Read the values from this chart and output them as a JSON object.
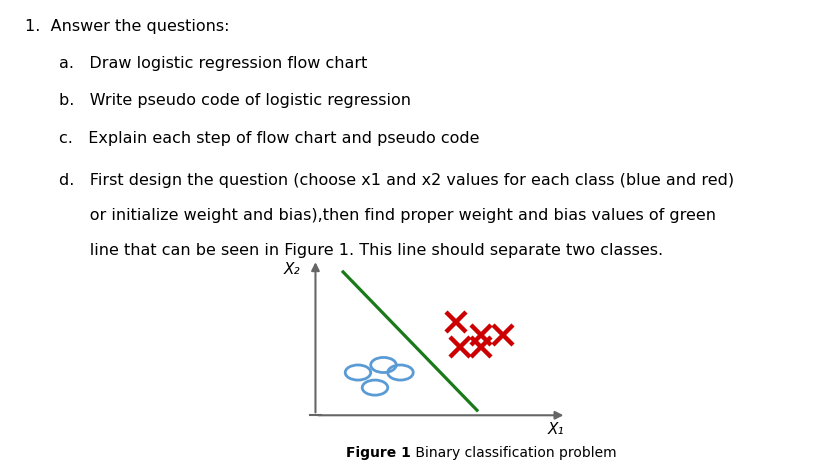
{
  "title_text": "1.  Answer the questions:",
  "item_a": "a.   Draw logistic regression flow chart",
  "item_b": "b.   Write pseudo code of logistic regression",
  "item_c": "c.   Explain each step of flow chart and pseudo code",
  "item_d_line1": "d.   First design the question (choose x1 and x2 values for each class (blue and red)",
  "item_d_line2": "      or initialize weight and bias),then find proper weight and bias values of green",
  "item_d_line3": "      line that can be seen in Figure 1. This line should separate two classes.",
  "figure_caption_bold": "Figure 1",
  "figure_caption_normal": " Binary classification problem",
  "blue_circles": [
    [
      2.5,
      3.2
    ],
    [
      3.1,
      3.5
    ],
    [
      3.5,
      3.2
    ],
    [
      2.9,
      2.6
    ]
  ],
  "red_crosses": [
    [
      4.8,
      5.2
    ],
    [
      5.4,
      4.7
    ],
    [
      5.9,
      4.7
    ],
    [
      4.9,
      4.2
    ],
    [
      5.4,
      4.2
    ]
  ],
  "green_line_x": [
    2.15,
    5.3
  ],
  "green_line_y": [
    7.2,
    1.7
  ],
  "axis_x_label": "X₁",
  "axis_y_label": "X₂",
  "xlim": [
    0.0,
    7.5
  ],
  "ylim": [
    0.0,
    7.8
  ],
  "background_color": "#ffffff",
  "text_color": "#000000",
  "blue_color": "#5b9bd5",
  "red_color": "#cc0000",
  "green_color": "#1a7a1a",
  "axis_color": "#666666"
}
